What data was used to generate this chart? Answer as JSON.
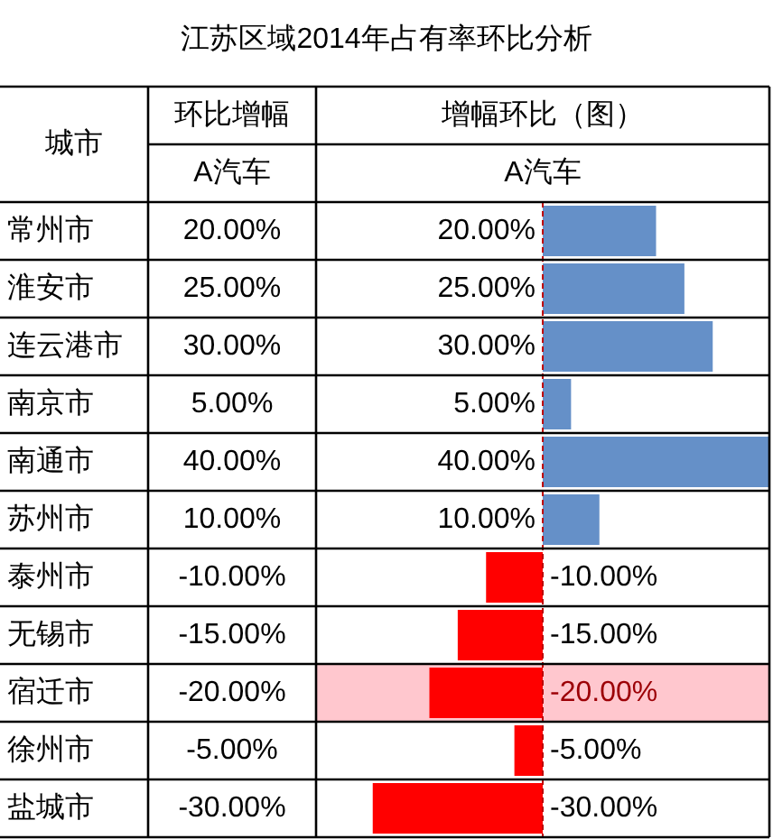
{
  "chart_data": {
    "type": "bar",
    "orientation": "horizontal",
    "title": "江苏区域2014年占有率环比分析",
    "ylabel": "城市",
    "xlabel": "增幅环比（图）",
    "annotations": [
      "环比增幅",
      "A汽车"
    ],
    "categories": [
      "常州市",
      "淮安市",
      "连云港市",
      "南京市",
      "南通市",
      "苏州市",
      "泰州市",
      "无锡市",
      "宿迁市",
      "徐州市",
      "盐城市"
    ],
    "series": [
      {
        "name": "A汽车",
        "values": [
          20,
          25,
          30,
          5,
          40,
          10,
          -10,
          -15,
          -20,
          -5,
          -30
        ],
        "colors": [
          "#6590c8",
          "#6590c8",
          "#6590c8",
          "#6590c8",
          "#6590c8",
          "#6590c8",
          "#ff0000",
          "#ff0000",
          "#ff0000",
          "#ff0000",
          "#ff0000"
        ],
        "value_labels": [
          "20.00%",
          "25.00%",
          "30.00%",
          "5.00%",
          "40.00%",
          "10.00%",
          "-10.00%",
          "-15.00%",
          "-20.00%",
          "-5.00%",
          "-30.00%"
        ]
      }
    ],
    "xlim": [
      -40,
      40
    ],
    "tick_labels": "y",
    "ref_lines": [
      {
        "axis": "x",
        "value": 0,
        "color": "#c00000",
        "line_style": "dashed"
      }
    ],
    "bands": [
      {
        "axis": "y",
        "from": "宿迁市",
        "to": "宿迁市",
        "color": "#ffc7ce"
      }
    ]
  }
}
